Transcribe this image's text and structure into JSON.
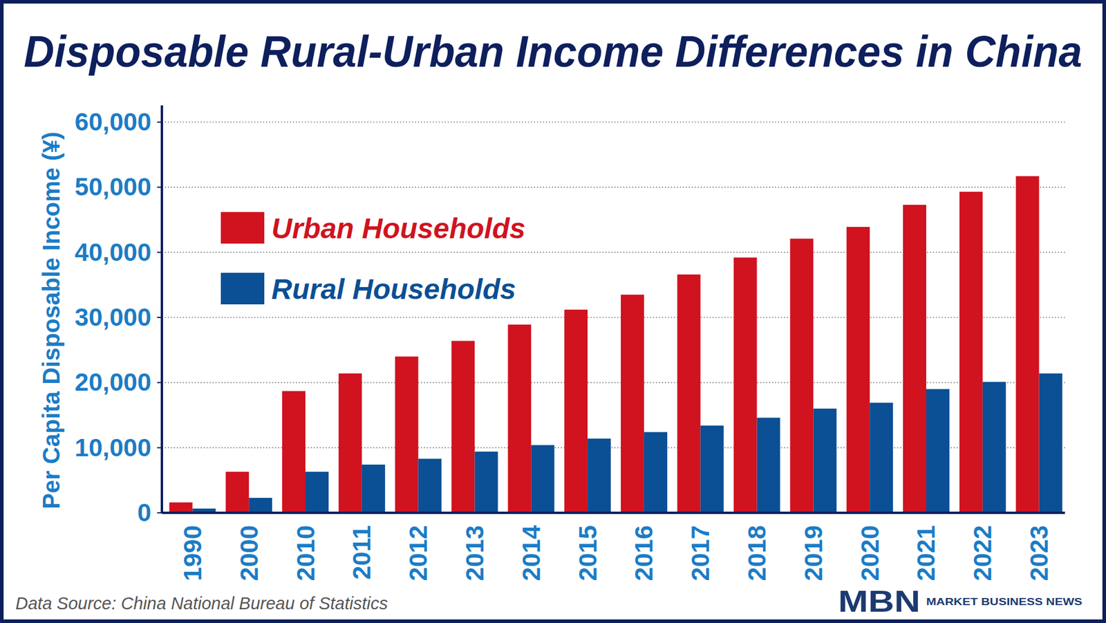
{
  "chart_data": {
    "type": "bar",
    "title": "Disposable Rural-Urban Income Differences in China",
    "y_label": "Per Capita Disposable Income (¥)",
    "source": "Data Source: China National Bureau of Statistics",
    "annotations": [
      "MBN",
      "MARKET BUSINESS NEWS"
    ],
    "categories": [
      "1990",
      "2000",
      "2010",
      "2011",
      "2012",
      "2013",
      "2014",
      "2015",
      "2016",
      "2017",
      "2018",
      "2019",
      "2020",
      "2021",
      "2022",
      "2023"
    ],
    "series": [
      {
        "name": "Urban Households",
        "color": "#d0131f",
        "values": [
          1600,
          6300,
          18700,
          21400,
          24000,
          26400,
          28900,
          31200,
          33500,
          36600,
          39200,
          42100,
          43900,
          47300,
          49300,
          51700
        ]
      },
      {
        "name": "Rural Households",
        "color": "#0b4f94",
        "values": [
          650,
          2300,
          6300,
          7400,
          8300,
          9400,
          10400,
          11400,
          12400,
          13400,
          14600,
          16000,
          16900,
          19000,
          20100,
          21400
        ]
      }
    ],
    "ylim": [
      0,
      60000
    ],
    "yticks": [
      0,
      {
        "value": 10000,
        "label": "10,000"
      },
      {
        "value": 20000,
        "label": "20,000"
      },
      {
        "value": 30000,
        "label": "30,000"
      },
      {
        "value": 40000,
        "label": "40,000"
      },
      {
        "value": 50000,
        "label": "50,000"
      },
      {
        "value": 60000,
        "label": "60,000"
      }
    ],
    "grid": true,
    "legend": "upper left"
  }
}
